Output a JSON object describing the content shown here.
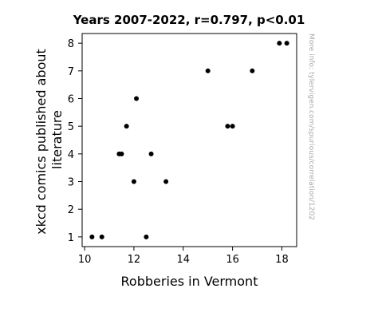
{
  "chart_data": {
    "type": "scatter",
    "title": "Years 2007-2022, r=0.797, p<0.01",
    "xlabel": "Robberies in Vermont",
    "ylabel_lines": [
      "xkcd comics published about",
      "literature"
    ],
    "watermark": "More info: tylervigen.com/spurious/correlation/1202",
    "xlim": [
      9.9,
      18.6
    ],
    "ylim": [
      0.65,
      8.35
    ],
    "x_ticks": [
      {
        "value": 10,
        "label": "10"
      },
      {
        "value": 12,
        "label": "12"
      },
      {
        "value": 14,
        "label": "14"
      },
      {
        "value": 16,
        "label": "16"
      },
      {
        "value": 18,
        "label": "18"
      }
    ],
    "y_ticks": [
      {
        "value": 1,
        "label": "1"
      },
      {
        "value": 2,
        "label": "2"
      },
      {
        "value": 3,
        "label": "3"
      },
      {
        "value": 4,
        "label": "4"
      },
      {
        "value": 5,
        "label": "5"
      },
      {
        "value": 6,
        "label": "6"
      },
      {
        "value": 7,
        "label": "7"
      },
      {
        "value": 8,
        "label": "8"
      }
    ],
    "grid": false,
    "points": [
      {
        "x": 10.3,
        "y": 1
      },
      {
        "x": 10.7,
        "y": 1
      },
      {
        "x": 11.4,
        "y": 4
      },
      {
        "x": 11.5,
        "y": 4
      },
      {
        "x": 11.7,
        "y": 5
      },
      {
        "x": 12.0,
        "y": 3
      },
      {
        "x": 12.1,
        "y": 6
      },
      {
        "x": 12.5,
        "y": 1
      },
      {
        "x": 12.7,
        "y": 4
      },
      {
        "x": 13.3,
        "y": 3
      },
      {
        "x": 15.0,
        "y": 7
      },
      {
        "x": 15.8,
        "y": 5
      },
      {
        "x": 16.0,
        "y": 5
      },
      {
        "x": 16.8,
        "y": 7
      },
      {
        "x": 17.9,
        "y": 8
      },
      {
        "x": 18.2,
        "y": 8
      }
    ],
    "colors": {
      "point": "#000000",
      "axis": "#000000",
      "watermark": "#aaaaaa"
    }
  }
}
